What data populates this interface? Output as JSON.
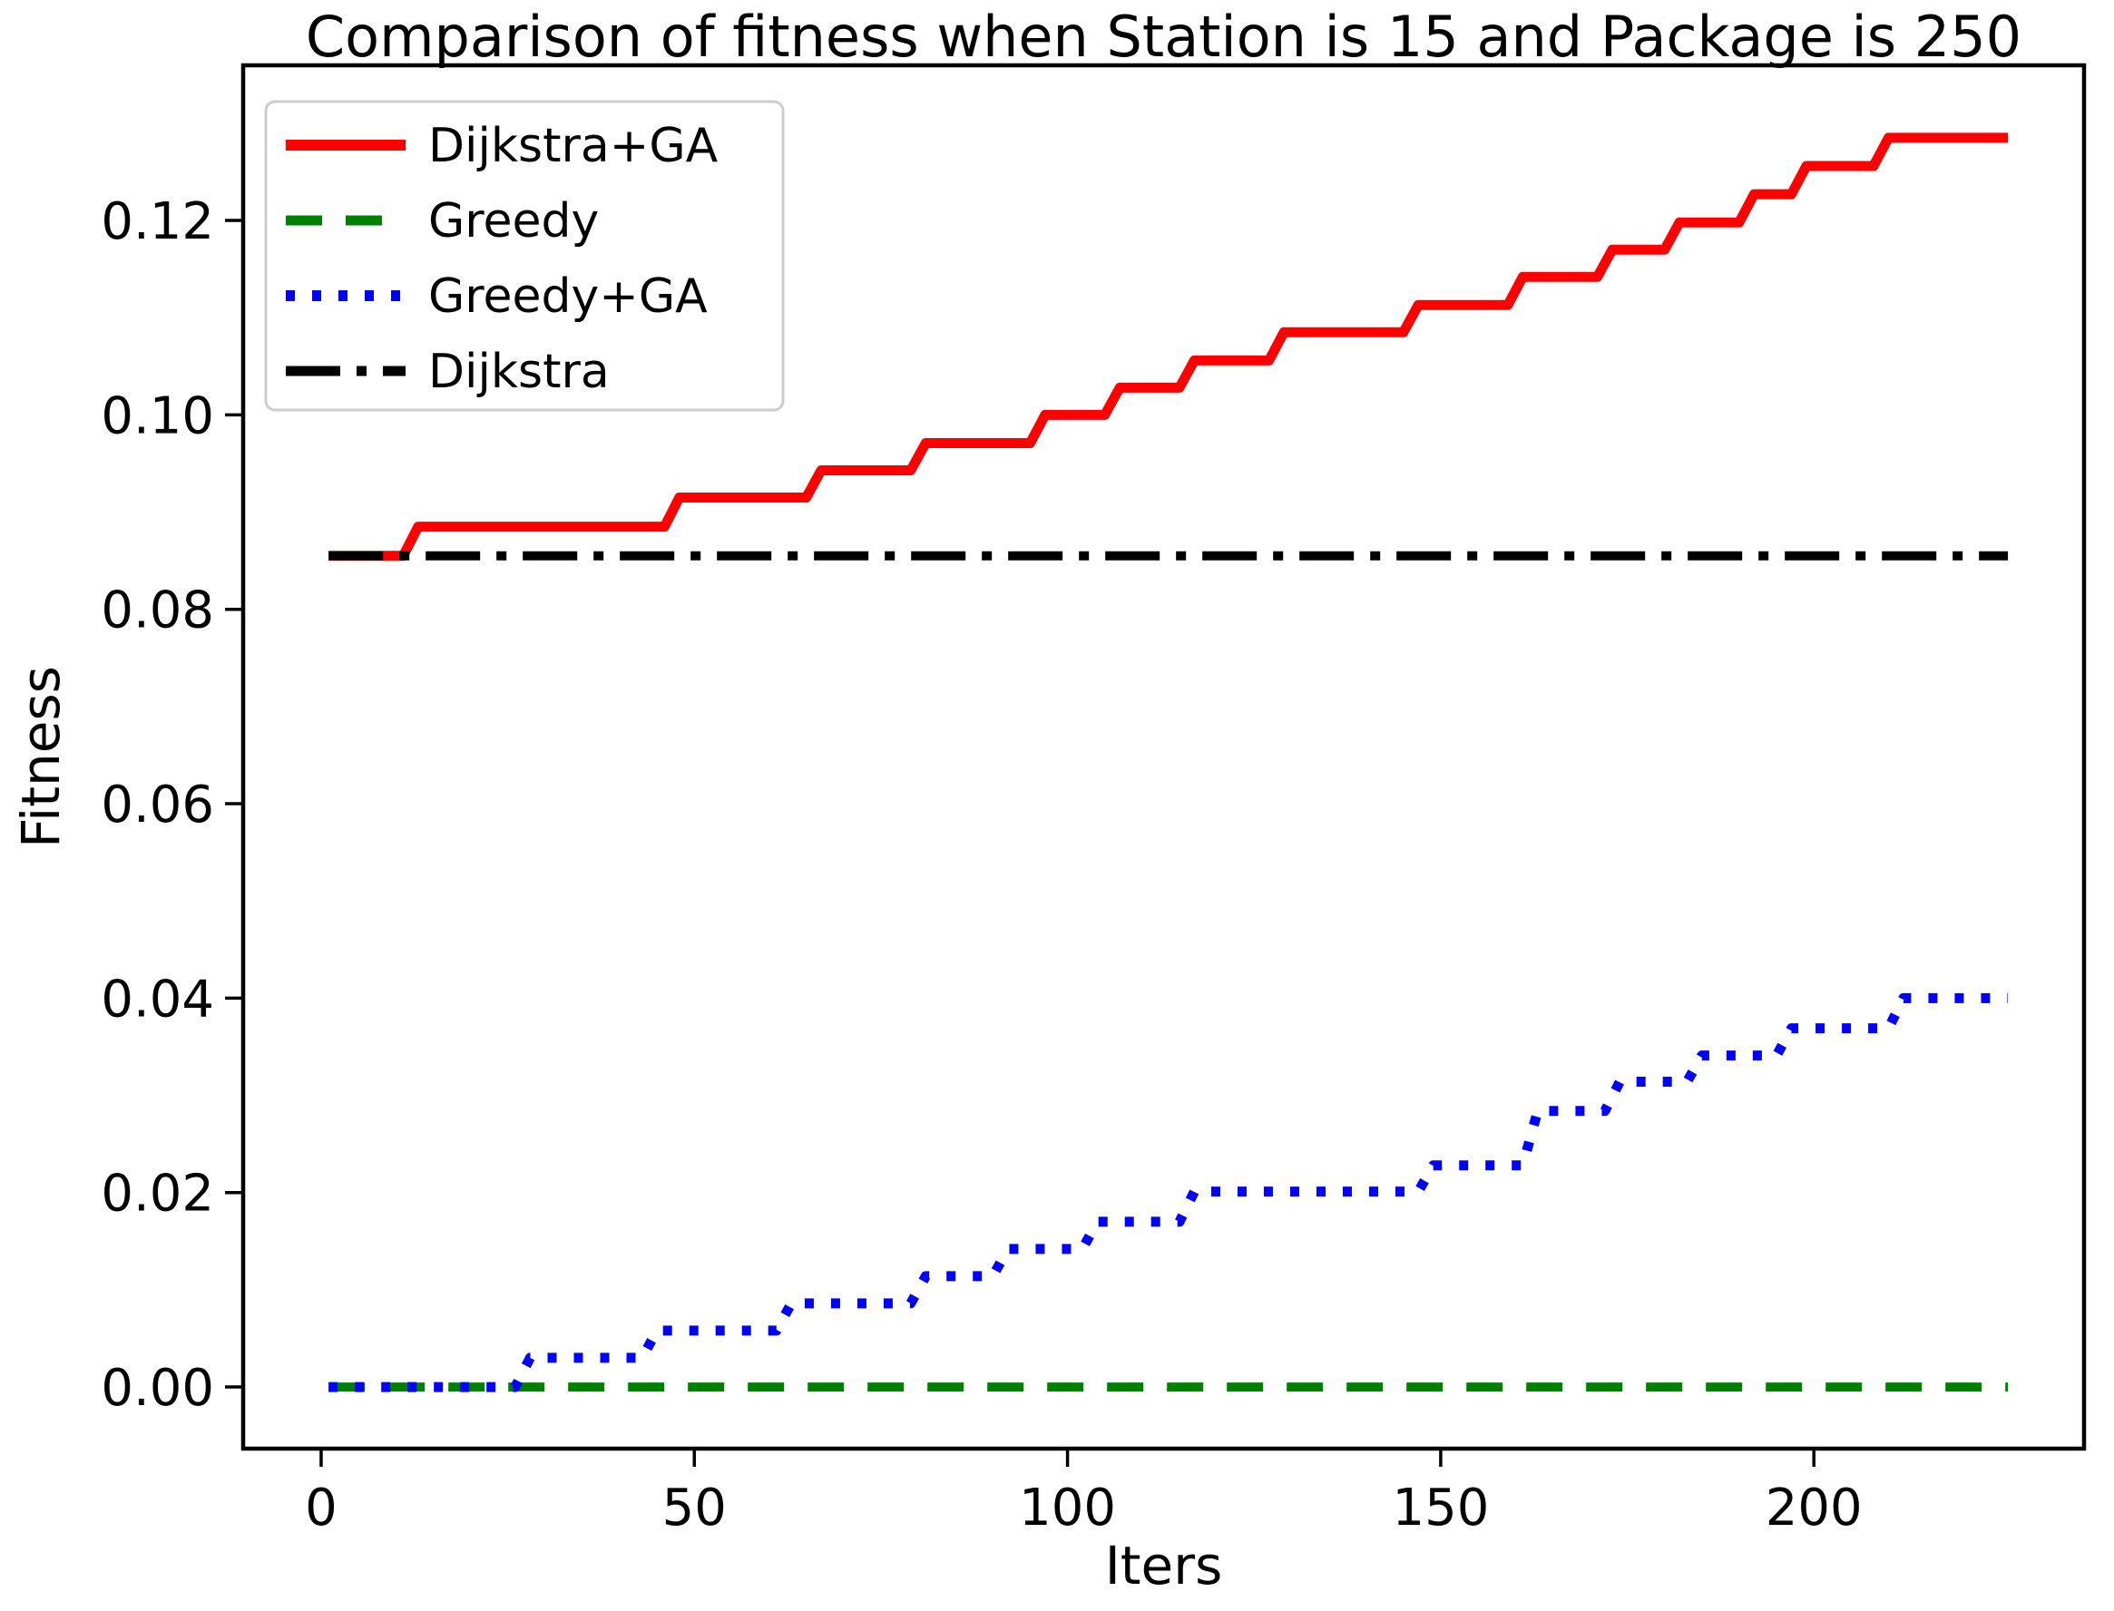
{
  "chart_data": {
    "type": "line",
    "title": "Comparison of fitness when Station is 15 and Package is 250",
    "xlabel": "Iters",
    "ylabel": "Fitness",
    "xlim": [
      -10.45,
      236.2
    ],
    "ylim": [
      -0.00634,
      0.13596
    ],
    "grid": false,
    "legend_position": "upper left",
    "x_ticks": [
      0,
      50,
      100,
      150,
      200
    ],
    "x_tick_labels": [
      "0",
      "50",
      "100",
      "150",
      "200"
    ],
    "y_ticks": [
      0.0,
      0.02,
      0.04,
      0.06,
      0.08,
      0.1,
      0.12
    ],
    "y_tick_labels": [
      "0.00",
      "0.02",
      "0.04",
      "0.06",
      "0.08",
      "0.10",
      "0.12"
    ],
    "axis_color": "#000000",
    "legend_border_color": "#cccccc",
    "series": [
      {
        "name": "Dijkstra+GA",
        "color": "#ff0000",
        "style": "solid",
        "width": 11,
        "points": [
          [
            1,
            0.0855
          ],
          [
            11,
            0.0855
          ],
          [
            13,
            0.0885
          ],
          [
            46,
            0.0885
          ],
          [
            48,
            0.0915
          ],
          [
            65,
            0.0915
          ],
          [
            67,
            0.0943
          ],
          [
            79,
            0.0943
          ],
          [
            81,
            0.0971
          ],
          [
            95,
            0.0971
          ],
          [
            97,
            0.1
          ],
          [
            105,
            0.1
          ],
          [
            107,
            0.1028
          ],
          [
            115,
            0.1028
          ],
          [
            117,
            0.1056
          ],
          [
            127,
            0.1056
          ],
          [
            129,
            0.1085
          ],
          [
            145,
            0.1085
          ],
          [
            147,
            0.1113
          ],
          [
            159,
            0.1113
          ],
          [
            161,
            0.1142
          ],
          [
            171,
            0.1142
          ],
          [
            173,
            0.117
          ],
          [
            180,
            0.117
          ],
          [
            182,
            0.1198
          ],
          [
            190,
            0.1198
          ],
          [
            192,
            0.1227
          ],
          [
            197,
            0.1227
          ],
          [
            199,
            0.1256
          ],
          [
            208,
            0.1256
          ],
          [
            210,
            0.1285
          ],
          [
            226,
            0.1285
          ]
        ]
      },
      {
        "name": "Greedy",
        "color": "#008000",
        "style": "dashed",
        "width": 10,
        "points": [
          [
            1,
            0.0
          ],
          [
            226,
            0.0
          ]
        ]
      },
      {
        "name": "Greedy+GA",
        "color": "#0000ff",
        "style": "dotted",
        "width": 11,
        "points": [
          [
            1,
            0.0
          ],
          [
            26,
            0.0
          ],
          [
            28,
            0.003
          ],
          [
            43,
            0.003
          ],
          [
            45,
            0.0058
          ],
          [
            61,
            0.0058
          ],
          [
            63,
            0.0086
          ],
          [
            79,
            0.0086
          ],
          [
            81,
            0.0114
          ],
          [
            90,
            0.0114
          ],
          [
            92,
            0.0142
          ],
          [
            102,
            0.0142
          ],
          [
            104,
            0.017
          ],
          [
            115,
            0.017
          ],
          [
            117,
            0.0201
          ],
          [
            147,
            0.0201
          ],
          [
            149,
            0.0228
          ],
          [
            161,
            0.0228
          ],
          [
            163,
            0.0284
          ],
          [
            172,
            0.0284
          ],
          [
            174,
            0.0314
          ],
          [
            183,
            0.0314
          ],
          [
            185,
            0.0341
          ],
          [
            195,
            0.0341
          ],
          [
            197,
            0.0369
          ],
          [
            210,
            0.0369
          ],
          [
            212,
            0.04
          ],
          [
            226,
            0.04
          ]
        ]
      },
      {
        "name": "Dijkstra",
        "color": "#000000",
        "style": "dashdot",
        "width": 10,
        "points": [
          [
            1,
            0.0855
          ],
          [
            226,
            0.0855
          ]
        ]
      }
    ]
  }
}
